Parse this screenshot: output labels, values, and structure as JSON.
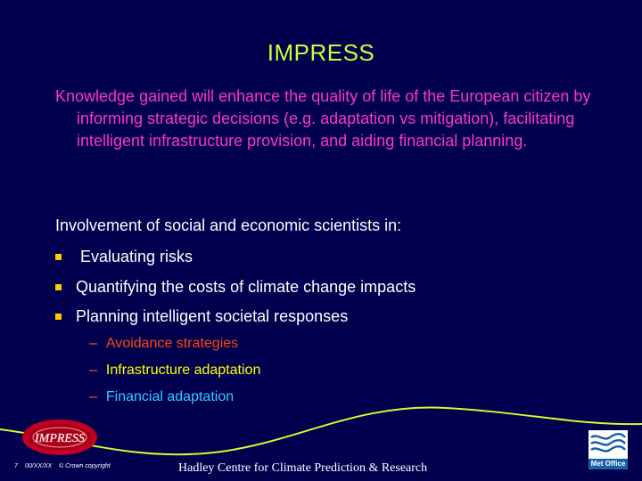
{
  "title": "IMPRESS",
  "intro": "Knowledge gained will enhance the quality of life of the European citizen by informing strategic decisions (e.g. adaptation vs mitigation), facilitating intelligent infrastructure provision, and aiding financial planning.",
  "lead": "Involvement of social and economic scientists in:",
  "bullets": [
    " Evaluating risks",
    "Quantifying the costs of climate change impacts",
    "Planning intelligent societal responses"
  ],
  "sub_dash": "–",
  "sub_bullets": [
    {
      "text": "Avoidance strategies",
      "color": "#ff4411"
    },
    {
      "text": "Infrastructure adaptation",
      "color": "#ffff00"
    },
    {
      "text": "Financial adaptation",
      "color": "#33ccff"
    }
  ],
  "footer": {
    "page_number": "7",
    "date": "00/XX/XX",
    "copyright": "© Crown copyright",
    "centre": "Hadley Centre for Climate Prediction & Research",
    "logo_text": "IMPRESS",
    "met_office_label": "Met Office"
  },
  "colors": {
    "background": "#00004f",
    "title": "#ccff33",
    "intro": "#ff33cc",
    "bullet_marker": "#ffcc00",
    "wave": "#ccff33"
  }
}
